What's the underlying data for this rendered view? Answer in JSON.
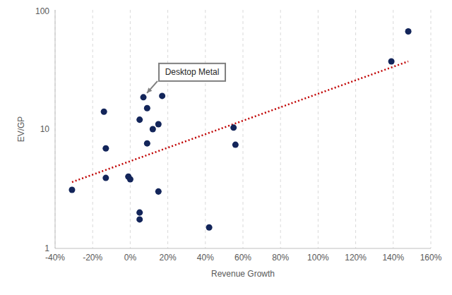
{
  "chart_data": {
    "type": "scatter",
    "x_label": "Revenue Growth",
    "y_label": "EV/GP",
    "log": "y",
    "grid": true,
    "xlim": [
      -40,
      160
    ],
    "xticks": [
      {
        "value": -40,
        "label": "-40%"
      },
      {
        "value": -20,
        "label": "-20%"
      },
      {
        "value": 0,
        "label": "0%"
      },
      {
        "value": 20,
        "label": "20%"
      },
      {
        "value": 40,
        "label": "40%"
      },
      {
        "value": 60,
        "label": "60%"
      },
      {
        "value": 80,
        "label": "80%"
      },
      {
        "value": 100,
        "label": "100%"
      },
      {
        "value": 120,
        "label": "120%"
      },
      {
        "value": 140,
        "label": "140%"
      },
      {
        "value": 160,
        "label": "160%"
      }
    ],
    "ylim": [
      1,
      100
    ],
    "yticks": [
      1,
      10,
      100
    ],
    "x": [
      -31,
      -14,
      -13,
      -13,
      -1,
      0,
      5,
      5,
      5,
      7,
      9,
      9,
      12,
      15,
      15,
      17,
      42,
      55,
      56,
      139,
      148
    ],
    "values": [
      3.1,
      14,
      6.9,
      3.9,
      4.0,
      3.8,
      2.0,
      1.75,
      12,
      18.5,
      15,
      7.6,
      10,
      11,
      3.0,
      19,
      1.5,
      10.3,
      7.4,
      37,
      66
    ],
    "color": "#13255a",
    "marker": "circle",
    "trendline": {
      "x": [
        -31,
        148
      ],
      "values": [
        3.6,
        37
      ],
      "color": "#c00000",
      "line_style": "dotted"
    },
    "annotations": [
      {
        "text": "Desktop Metal",
        "x": 7,
        "y": 18.5
      }
    ]
  }
}
